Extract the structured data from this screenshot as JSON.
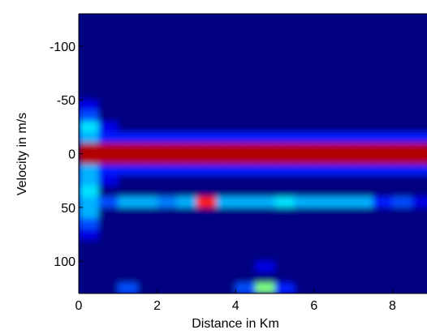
{
  "chart_data": {
    "type": "heatmap",
    "colormap": "jet",
    "x_label": "Distance in Km",
    "y_label": "Velocity in m/s",
    "xlim": [
      0,
      8.88
    ],
    "ylim": [
      -130,
      130
    ],
    "y_reversed": true,
    "xticks": [
      0,
      2,
      4,
      6,
      8
    ],
    "yticks": [
      -100,
      -50,
      0,
      50,
      100
    ],
    "x": [
      0.25,
      0.75,
      1.25,
      1.75,
      2.25,
      2.75,
      3.25,
      3.75,
      4.25,
      4.75,
      5.25,
      5.75,
      6.25,
      6.75,
      7.25,
      7.75,
      8.25,
      8.75
    ],
    "y": [
      -125,
      -115,
      -105,
      -95,
      -85,
      -75,
      -65,
      -55,
      -45,
      -35,
      -25,
      -15,
      -5,
      5,
      15,
      25,
      35,
      45,
      55,
      65,
      75,
      85,
      95,
      105,
      115,
      125
    ],
    "z": [
      [
        0,
        0,
        0,
        0,
        0,
        0,
        0,
        0,
        0,
        0,
        0,
        0,
        0,
        0,
        0,
        0,
        0,
        0
      ],
      [
        0,
        0,
        0,
        0,
        0,
        0,
        0,
        0,
        0,
        0,
        0,
        0,
        0,
        0,
        0,
        0,
        0,
        0
      ],
      [
        0,
        0,
        0,
        0,
        0,
        0,
        0,
        0,
        0,
        0,
        0,
        0,
        0,
        0,
        0,
        0,
        0,
        0
      ],
      [
        0,
        0,
        0,
        0,
        0,
        0,
        0,
        0,
        0,
        0,
        0,
        0,
        0,
        0,
        0,
        0,
        0,
        0
      ],
      [
        0,
        0,
        0,
        0,
        0,
        0,
        0,
        0,
        0,
        0,
        0,
        0,
        0,
        0,
        0,
        0,
        0,
        0
      ],
      [
        0,
        0,
        0,
        0,
        0,
        0,
        0,
        0,
        0,
        0,
        0,
        0,
        0,
        0,
        0,
        0,
        0,
        0
      ],
      [
        0,
        0,
        0,
        0,
        0,
        0,
        0,
        0,
        0,
        0,
        0,
        0,
        0,
        0,
        0,
        0,
        0,
        0
      ],
      [
        0,
        0,
        0,
        0,
        0,
        0,
        0,
        0,
        0,
        0,
        0,
        0,
        0,
        0,
        0,
        0,
        0,
        0
      ],
      [
        0.1,
        0,
        0,
        0,
        0,
        0,
        0,
        0,
        0,
        0,
        0,
        0,
        0,
        0,
        0,
        0,
        0,
        0
      ],
      [
        0.2,
        0,
        0,
        0,
        0,
        0,
        0,
        0,
        0,
        0,
        0,
        0,
        0,
        0,
        0,
        0,
        0,
        0
      ],
      [
        0.35,
        0.1,
        0,
        0,
        0,
        0,
        0,
        0,
        0,
        0,
        0,
        0,
        0,
        0,
        0,
        0,
        0,
        0
      ],
      [
        0.3,
        0.15,
        0.15,
        0.15,
        0.15,
        0.15,
        0.15,
        0.15,
        0.15,
        0.15,
        0.15,
        0.15,
        0.15,
        0.15,
        0.15,
        0.15,
        0.15,
        0.15
      ],
      [
        0.95,
        0.95,
        0.95,
        0.95,
        0.95,
        0.95,
        0.95,
        0.95,
        0.95,
        0.95,
        0.95,
        0.95,
        0.95,
        0.95,
        0.95,
        0.95,
        0.95,
        0.95
      ],
      [
        0.95,
        0.95,
        0.95,
        0.95,
        0.95,
        0.95,
        0.95,
        0.95,
        0.95,
        0.95,
        0.95,
        0.95,
        0.95,
        0.95,
        0.95,
        0.95,
        0.95,
        0.95
      ],
      [
        0.3,
        0.15,
        0.15,
        0.15,
        0.15,
        0.15,
        0.15,
        0.15,
        0.15,
        0.15,
        0.15,
        0.15,
        0.15,
        0.15,
        0.15,
        0.15,
        0.15,
        0.15
      ],
      [
        0.3,
        0.1,
        0,
        0,
        0,
        0,
        0,
        0,
        0,
        0,
        0,
        0,
        0,
        0,
        0,
        0,
        0,
        0
      ],
      [
        0.35,
        0,
        0,
        0,
        0,
        0,
        0,
        0,
        0,
        0,
        0,
        0,
        0,
        0,
        0,
        0,
        0,
        0
      ],
      [
        0.3,
        0.2,
        0.3,
        0.3,
        0.25,
        0.3,
        0.85,
        0.3,
        0.3,
        0.3,
        0.35,
        0.3,
        0.3,
        0.3,
        0.3,
        0.15,
        0.2,
        0.1
      ],
      [
        0.3,
        0,
        0,
        0,
        0,
        0,
        0,
        0,
        0,
        0,
        0,
        0,
        0,
        0,
        0,
        0,
        0,
        0
      ],
      [
        0.2,
        0,
        0,
        0,
        0,
        0,
        0,
        0,
        0,
        0,
        0,
        0,
        0,
        0,
        0,
        0,
        0,
        0
      ],
      [
        0.1,
        0,
        0,
        0,
        0,
        0,
        0,
        0,
        0,
        0,
        0,
        0,
        0,
        0,
        0,
        0,
        0,
        0
      ],
      [
        0,
        0,
        0,
        0,
        0,
        0,
        0,
        0,
        0,
        0,
        0,
        0,
        0,
        0,
        0,
        0,
        0,
        0
      ],
      [
        0,
        0,
        0,
        0,
        0,
        0,
        0,
        0,
        0,
        0,
        0,
        0,
        0,
        0,
        0,
        0,
        0,
        0
      ],
      [
        0,
        0,
        0,
        0,
        0,
        0,
        0,
        0,
        0,
        0.1,
        0,
        0,
        0,
        0,
        0,
        0,
        0,
        0
      ],
      [
        0,
        0,
        0,
        0,
        0,
        0,
        0,
        0,
        0,
        0,
        0,
        0,
        0,
        0,
        0,
        0,
        0,
        0
      ],
      [
        0,
        0,
        0.2,
        0,
        0,
        0,
        0,
        0,
        0.2,
        0.5,
        0.15,
        0,
        0,
        0,
        0,
        0,
        0,
        0
      ]
    ]
  }
}
